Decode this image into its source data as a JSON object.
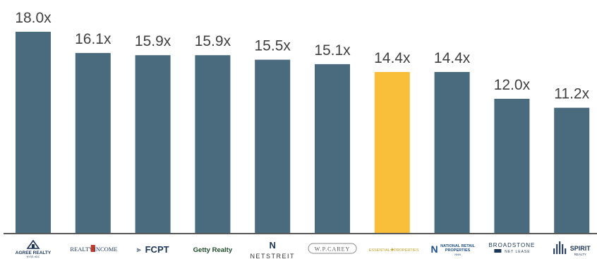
{
  "chart_data": {
    "type": "bar",
    "categories": [
      "Agree Realty",
      "Realty Income",
      "FCPT",
      "Getty Realty",
      "NetSTREIT",
      "W. P. Carey",
      "Essential Properties",
      "National Retail Properties",
      "Broadstone Net Lease",
      "Spirit Realty"
    ],
    "values": [
      18.0,
      16.1,
      15.9,
      15.9,
      15.5,
      15.1,
      14.4,
      14.4,
      12.0,
      11.2
    ],
    "value_labels": [
      "18.0x",
      "16.1x",
      "15.9x",
      "15.9x",
      "15.5x",
      "15.1x",
      "14.4x",
      "14.4x",
      "12.0x",
      "11.2x"
    ],
    "highlight_index": 6,
    "ylim": [
      0,
      18.0
    ],
    "grid": false,
    "legend": "none"
  },
  "logos": [
    {
      "icon": "agree-realty-logo",
      "lines": [
        "AGREE REALTY",
        "NYSE: ADC"
      ]
    },
    {
      "icon": "realty-income-logo",
      "lines": [
        "REALTY",
        "INCOME"
      ]
    },
    {
      "icon": "fcpt-logo",
      "lines": [
        "FCPT"
      ]
    },
    {
      "icon": "getty-realty-logo",
      "lines": [
        "Getty Realty"
      ]
    },
    {
      "icon": "netstreit-logo",
      "lines": [
        "N",
        "NETSTREIT"
      ]
    },
    {
      "icon": "wp-carey-logo",
      "lines": [
        "W.P.CAREY"
      ]
    },
    {
      "icon": "essential-properties-logo",
      "lines": [
        "ESSENTIAL",
        "PROPERTIES"
      ]
    },
    {
      "icon": "national-retail-properties-logo",
      "lines": [
        "NATIONAL RETAIL",
        "PROPERTIES",
        "NNN"
      ]
    },
    {
      "icon": "broadstone-logo",
      "lines": [
        "BROADSTONE",
        "NET LEASE"
      ]
    },
    {
      "icon": "spirit-realty-logo",
      "lines": [
        "SPIRIT",
        "REALTY"
      ]
    }
  ],
  "colors": {
    "bar": "#4a6a7e",
    "highlight": "#f9bf3b",
    "axis": "#595959",
    "label": "#404040"
  }
}
